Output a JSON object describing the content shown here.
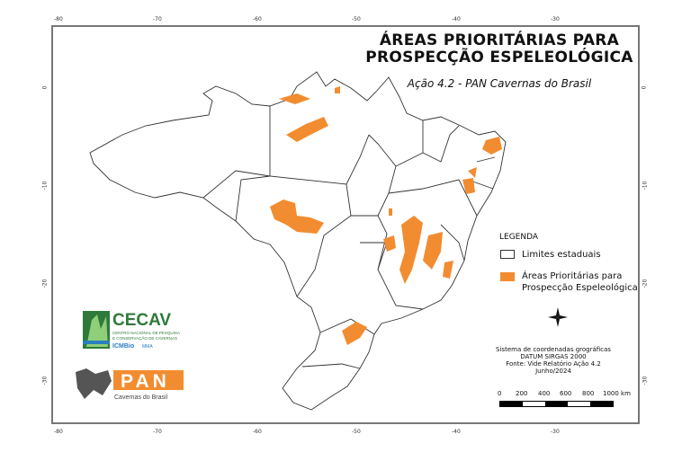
{
  "title": {
    "line1": "ÁREAS PRIORITÁRIAS PARA",
    "line2": "PROSPECÇÃO ESPELEOLÓGICA"
  },
  "subtitle": "Ação 4.2 - PAN Cavernas do Brasil",
  "axes": {
    "longitude_ticks": [
      "-80",
      "-70",
      "-60",
      "-50",
      "-40",
      "-30"
    ],
    "latitude_ticks": [
      "0",
      "-10",
      "-20",
      "-30"
    ]
  },
  "legend": {
    "title": "LEGENDA",
    "items": [
      {
        "label": "Limites estaduais",
        "color": "#ffffff",
        "border": "#333333"
      },
      {
        "label_line1": "Áreas Prioritárias para",
        "label_line2": "Prospecção Espeleológica",
        "color": "#f28c30"
      }
    ]
  },
  "north_arrow": {
    "icon": "compass-star-icon"
  },
  "info": {
    "line1": "Sistema de coordenadas grográficas",
    "line2": "DATUM SIRGAS 2000",
    "line3": "Fonte: Vide Relatório Ação 4.2",
    "line4": "Junho/2024"
  },
  "scale": {
    "labels": [
      "0",
      "200",
      "400",
      "600",
      "800",
      "1000 km"
    ]
  },
  "logos": {
    "cecav": {
      "name": "CECAV",
      "line1": "CENTRO NACIONAL DE PESQUISA",
      "line2": "E CONSERVAÇÃO DE CAVERNAS",
      "org": "ICMBio",
      "org2": "MMA"
    },
    "pan": {
      "name": "PAN",
      "caption": "Cavernas do Brasil"
    }
  },
  "colors": {
    "priority_area": "#f28c30",
    "state_border": "#333333",
    "cecav_green": "#2f7a3a",
    "pan_orange": "#f28c30"
  }
}
